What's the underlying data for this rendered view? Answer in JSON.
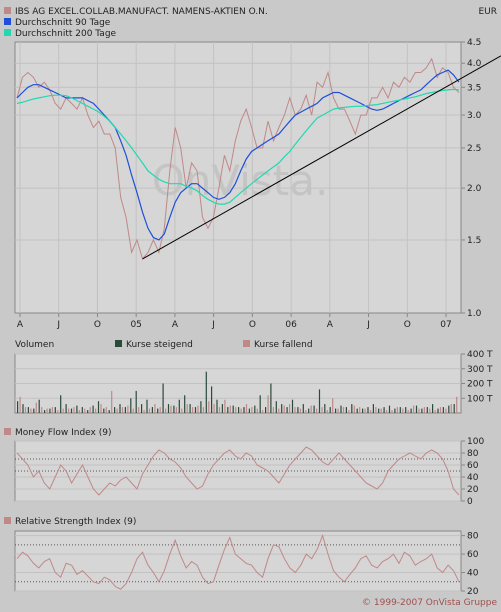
{
  "currency": "EUR",
  "copyright": "© 1999-2007 OnVista Gruppe",
  "watermark": "OnVista.",
  "chart_data": [
    {
      "type": "line",
      "panel": "price",
      "legend": [
        {
          "name": "IBS AG EXCEL.COLLAB.MANUFACT. NAMENS-AKTIEN O.N.",
          "color": "#c08888"
        },
        {
          "name": "Durchschnitt 90 Tage",
          "color": "#1f4fd8"
        },
        {
          "name": "Durchschnitt 200 Tage",
          "color": "#22d8b0"
        }
      ],
      "y_scale": "log",
      "ylim": [
        1.0,
        4.5
      ],
      "y_ticks": [
        "4.5",
        "4.0",
        "3.5",
        "3.0",
        "2.5",
        "2.0",
        "1.5",
        "1.0"
      ],
      "y_tick_values": [
        4.5,
        4.0,
        3.5,
        3.0,
        2.5,
        2.0,
        1.5,
        1.0
      ],
      "x_ticks": [
        "A",
        "J",
        "O",
        "05",
        "A",
        "J",
        "O",
        "06",
        "A",
        "J",
        "O",
        "07"
      ],
      "series": [
        {
          "name": "IBS AG EXCEL.COLLAB.MANUFACT. NAMENS-AKTIEN O.N.",
          "color": "#c08888",
          "values": [
            3.3,
            3.7,
            3.8,
            3.7,
            3.5,
            3.6,
            3.45,
            3.2,
            3.1,
            3.3,
            3.2,
            3.1,
            3.3,
            3.0,
            2.8,
            2.9,
            2.7,
            2.7,
            2.5,
            1.9,
            1.7,
            1.4,
            1.5,
            1.35,
            1.4,
            1.5,
            1.4,
            1.6,
            2.2,
            2.8,
            2.5,
            2.0,
            2.3,
            2.2,
            1.7,
            1.6,
            1.7,
            2.0,
            2.4,
            2.2,
            2.6,
            2.9,
            3.1,
            2.8,
            2.5,
            2.5,
            2.9,
            2.6,
            2.8,
            3.0,
            3.3,
            3.0,
            3.1,
            3.35,
            3.0,
            3.6,
            3.5,
            3.8,
            3.3,
            3.1,
            3.1,
            2.9,
            2.7,
            3.0,
            3.0,
            3.3,
            3.3,
            3.5,
            3.3,
            3.6,
            3.5,
            3.7,
            3.6,
            3.8,
            3.8,
            3.9,
            4.1,
            3.7,
            3.9,
            3.8,
            3.5,
            3.4
          ]
        },
        {
          "name": "Durchschnitt 90 Tage",
          "color": "#1f4fd8",
          "values": [
            3.3,
            3.4,
            3.5,
            3.55,
            3.55,
            3.5,
            3.45,
            3.4,
            3.35,
            3.3,
            3.3,
            3.3,
            3.3,
            3.25,
            3.2,
            3.1,
            3.0,
            2.9,
            2.8,
            2.6,
            2.4,
            2.15,
            1.95,
            1.75,
            1.6,
            1.52,
            1.5,
            1.55,
            1.7,
            1.85,
            1.95,
            2.0,
            2.05,
            2.05,
            2.0,
            1.95,
            1.9,
            1.88,
            1.9,
            1.95,
            2.05,
            2.2,
            2.35,
            2.45,
            2.5,
            2.55,
            2.6,
            2.65,
            2.7,
            2.8,
            2.9,
            3.0,
            3.05,
            3.1,
            3.15,
            3.2,
            3.3,
            3.35,
            3.4,
            3.4,
            3.35,
            3.3,
            3.25,
            3.2,
            3.15,
            3.1,
            3.08,
            3.1,
            3.15,
            3.2,
            3.25,
            3.3,
            3.35,
            3.4,
            3.45,
            3.55,
            3.65,
            3.75,
            3.8,
            3.85,
            3.75,
            3.6
          ]
        },
        {
          "name": "Durchschnitt 200 Tage",
          "color": "#22d8b0",
          "values": [
            3.2,
            3.22,
            3.25,
            3.28,
            3.3,
            3.32,
            3.34,
            3.35,
            3.35,
            3.34,
            3.3,
            3.25,
            3.2,
            3.15,
            3.1,
            3.05,
            2.98,
            2.9,
            2.8,
            2.7,
            2.6,
            2.5,
            2.4,
            2.3,
            2.2,
            2.15,
            2.1,
            2.07,
            2.05,
            2.05,
            2.05,
            2.02,
            2.0,
            1.97,
            1.92,
            1.88,
            1.85,
            1.83,
            1.83,
            1.85,
            1.9,
            1.95,
            2.0,
            2.05,
            2.1,
            2.15,
            2.2,
            2.25,
            2.3,
            2.38,
            2.45,
            2.55,
            2.65,
            2.75,
            2.85,
            2.95,
            3.0,
            3.05,
            3.1,
            3.12,
            3.13,
            3.14,
            3.15,
            3.15,
            3.16,
            3.17,
            3.18,
            3.2,
            3.22,
            3.24,
            3.26,
            3.28,
            3.3,
            3.32,
            3.35,
            3.38,
            3.4,
            3.42,
            3.44,
            3.45,
            3.46,
            3.45
          ]
        }
      ],
      "trendline": {
        "color": "#000000",
        "from": [
          23,
          1.35
        ],
        "to": [
          82,
          3.9
        ]
      }
    },
    {
      "type": "bar",
      "panel": "volume",
      "title": "Volumen",
      "legend": [
        {
          "name": "Kurse steigend",
          "color": "#2a4a3a"
        },
        {
          "name": "Kurse fallend",
          "color": "#c08888"
        }
      ],
      "y_ticks": [
        "400 T",
        "300 T",
        "200 T",
        "100 T"
      ],
      "y_tick_values": [
        400,
        300,
        200,
        100
      ],
      "ylim": [
        0,
        400
      ],
      "values_up": [
        80,
        60,
        40,
        30,
        90,
        20,
        30,
        40,
        120,
        60,
        30,
        50,
        40,
        20,
        50,
        80,
        30,
        20,
        40,
        60,
        40,
        100,
        150,
        60,
        90,
        40,
        30,
        200,
        60,
        50,
        90,
        120,
        60,
        40,
        80,
        280,
        180,
        90,
        60,
        40,
        50,
        40,
        40,
        30,
        50,
        120,
        40,
        200,
        80,
        60,
        40,
        90,
        40,
        60,
        30,
        50,
        160,
        60,
        40,
        30,
        50,
        40,
        60,
        30,
        30,
        40,
        60,
        30,
        40,
        50,
        30,
        40,
        40,
        30,
        50,
        30,
        40,
        60,
        30,
        40,
        50,
        60
      ],
      "values_down": [
        110,
        40,
        30,
        70,
        40,
        30,
        40,
        20,
        30,
        30,
        40,
        20,
        30,
        40,
        30,
        60,
        40,
        150,
        30,
        40,
        50,
        30,
        40,
        20,
        30,
        60,
        40,
        30,
        50,
        40,
        30,
        60,
        40,
        50,
        40,
        80,
        60,
        40,
        90,
        50,
        40,
        30,
        60,
        40,
        30,
        20,
        120,
        40,
        30,
        50,
        60,
        40,
        30,
        20,
        50,
        30,
        40,
        20,
        100,
        30,
        40,
        20,
        50,
        40,
        30,
        20,
        40,
        30,
        20,
        20,
        40,
        30,
        20,
        50,
        30,
        40,
        30,
        20,
        40,
        30,
        60,
        110
      ]
    },
    {
      "type": "line",
      "panel": "mfi",
      "title": "Money Flow Index (9)",
      "y_ticks": [
        "100",
        "80",
        "60",
        "40",
        "20",
        "0"
      ],
      "y_tick_values": [
        100,
        80,
        60,
        40,
        20,
        0
      ],
      "ylim": [
        0,
        100
      ],
      "reference_lines": [
        50,
        70
      ],
      "series": [
        {
          "name": "Money Flow Index (9)",
          "color": "#c08888",
          "values": [
            80,
            70,
            60,
            40,
            50,
            30,
            20,
            40,
            60,
            50,
            30,
            45,
            60,
            40,
            20,
            10,
            20,
            30,
            25,
            35,
            40,
            30,
            20,
            45,
            60,
            75,
            85,
            80,
            70,
            65,
            55,
            40,
            30,
            20,
            25,
            45,
            60,
            70,
            80,
            85,
            75,
            70,
            80,
            75,
            60,
            55,
            50,
            40,
            30,
            45,
            60,
            70,
            80,
            90,
            85,
            75,
            65,
            60,
            70,
            80,
            70,
            60,
            50,
            40,
            30,
            25,
            20,
            30,
            50,
            60,
            70,
            75,
            80,
            75,
            70,
            80,
            85,
            80,
            70,
            50,
            20,
            10
          ]
        }
      ]
    },
    {
      "type": "line",
      "panel": "rsi",
      "title": "Relative Strength Index (9)",
      "y_ticks": [
        "80",
        "60",
        "40",
        "20"
      ],
      "y_tick_values": [
        80,
        60,
        40,
        20
      ],
      "ylim": [
        20,
        85
      ],
      "reference_lines": [
        30,
        70
      ],
      "series": [
        {
          "name": "Relative Strength Index (9)",
          "color": "#c08888",
          "values": [
            55,
            62,
            58,
            50,
            45,
            52,
            55,
            40,
            35,
            50,
            48,
            38,
            42,
            36,
            30,
            28,
            35,
            32,
            25,
            22,
            28,
            40,
            55,
            62,
            48,
            40,
            30,
            42,
            60,
            75,
            58,
            45,
            52,
            48,
            35,
            28,
            30,
            48,
            65,
            78,
            60,
            55,
            50,
            48,
            40,
            35,
            55,
            70,
            68,
            55,
            45,
            40,
            48,
            60,
            55,
            65,
            80,
            60,
            42,
            35,
            30,
            38,
            45,
            55,
            58,
            48,
            45,
            52,
            55,
            60,
            50,
            62,
            58,
            48,
            52,
            55,
            60,
            45,
            40,
            48,
            42,
            30
          ]
        }
      ]
    }
  ]
}
